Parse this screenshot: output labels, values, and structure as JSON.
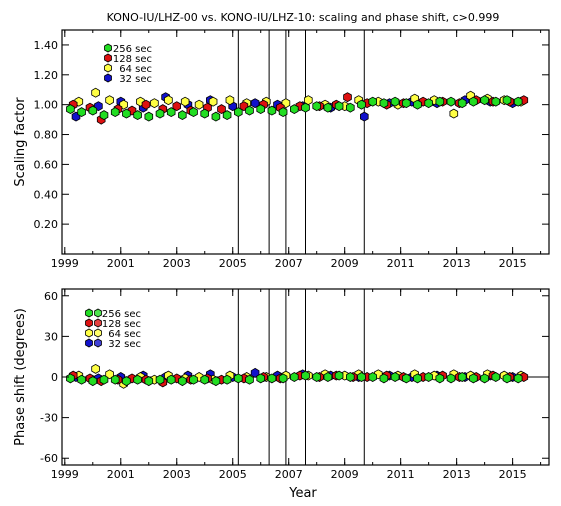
{
  "title": "KONO-IU/LHZ-00 vs. KONO-IU/LHZ-10: scaling and phase shift, c>0.999",
  "xlabel": "Year",
  "colors": {
    "256 sec": "#22dd22",
    "128 sec": "#dd1111",
    "64 sec": "#ffff44",
    "32 sec": "#1111cc"
  },
  "event_lines": [
    2005.2,
    2006.3,
    2006.9,
    2007.6,
    2009.7
  ],
  "chart_data": [
    {
      "type": "scatter",
      "ylabel": "Scaling factor",
      "xlim": [
        1998.9,
        2016.3
      ],
      "ylim": [
        0.0,
        1.5
      ],
      "x_ticks": [
        "1999",
        "2001",
        "2003",
        "2005",
        "2007",
        "2009",
        "2011",
        "2013",
        "2015"
      ],
      "y_ticks": [
        "0.20",
        "0.40",
        "0.60",
        "0.80",
        "1.00",
        "1.20",
        "1.40"
      ],
      "legend": [
        "256 sec",
        "128 sec",
        "64 sec",
        "32 sec"
      ],
      "legend_style": "single",
      "grid": false,
      "series": [
        {
          "name": "256 sec",
          "x": [
            1999.2,
            1999.6,
            2000.0,
            2000.4,
            2000.8,
            2001.2,
            2001.6,
            2002.0,
            2002.4,
            2002.8,
            2003.2,
            2003.6,
            2004.0,
            2004.4,
            2004.8,
            2005.2,
            2005.6,
            2006.0,
            2006.4,
            2006.8,
            2007.2,
            2007.6,
            2008.0,
            2008.4,
            2008.8,
            2009.2,
            2009.6,
            2010.0,
            2010.4,
            2010.8,
            2011.2,
            2011.6,
            2012.0,
            2012.4,
            2012.8,
            2013.2,
            2013.6,
            2014.0,
            2014.4,
            2014.8,
            2015.2
          ],
          "y": [
            0.97,
            0.95,
            0.96,
            0.93,
            0.95,
            0.94,
            0.93,
            0.92,
            0.94,
            0.95,
            0.93,
            0.95,
            0.94,
            0.92,
            0.93,
            0.95,
            0.96,
            0.97,
            0.96,
            0.95,
            0.97,
            0.98,
            0.99,
            0.98,
            0.99,
            0.98,
            1.0,
            1.02,
            1.01,
            1.02,
            1.01,
            1.0,
            1.01,
            1.02,
            1.02,
            1.01,
            1.02,
            1.03,
            1.02,
            1.03,
            1.02
          ]
        },
        {
          "name": "128 sec",
          "x": [
            1999.3,
            1999.9,
            2000.3,
            2000.9,
            2001.4,
            2001.9,
            2002.5,
            2003.0,
            2003.5,
            2004.1,
            2004.6,
            2005.4,
            2006.1,
            2006.7,
            2007.4,
            2008.1,
            2008.7,
            2009.1,
            2009.8,
            2010.5,
            2011.1,
            2011.8,
            2012.5,
            2013.1,
            2013.7,
            2014.3,
            2014.9,
            2015.4
          ],
          "y": [
            1.0,
            0.98,
            0.9,
            0.97,
            0.96,
            1.0,
            0.97,
            0.99,
            0.96,
            0.98,
            0.97,
            0.99,
            1.0,
            0.98,
            0.99,
            0.99,
            1.0,
            1.05,
            1.01,
            1.0,
            1.01,
            1.02,
            1.02,
            1.01,
            1.03,
            1.02,
            1.02,
            1.03
          ]
        },
        {
          "name": "64 sec",
          "x": [
            1999.5,
            2000.1,
            2000.6,
            2001.1,
            2001.7,
            2002.2,
            2002.7,
            2003.3,
            2003.8,
            2004.3,
            2004.9,
            2005.5,
            2006.2,
            2006.9,
            2007.7,
            2008.3,
            2009.0,
            2009.5,
            2010.2,
            2010.9,
            2011.5,
            2012.2,
            2012.9,
            2013.5,
            2014.1,
            2014.7,
            2015.3
          ],
          "y": [
            1.02,
            1.08,
            1.03,
            1.0,
            1.02,
            1.01,
            1.03,
            1.02,
            1.0,
            1.02,
            1.03,
            1.01,
            1.02,
            1.01,
            1.03,
            1.0,
            0.99,
            1.03,
            1.02,
            1.0,
            1.04,
            1.03,
            0.94,
            1.06,
            1.04,
            1.03,
            1.02
          ]
        },
        {
          "name": "32 sec",
          "x": [
            1999.4,
            2000.2,
            2001.0,
            2001.8,
            2002.6,
            2003.4,
            2004.2,
            2005.0,
            2005.8,
            2006.6,
            2007.5,
            2008.5,
            2009.7,
            2010.6,
            2011.4,
            2012.3,
            2013.3,
            2014.2,
            2015.0
          ],
          "y": [
            0.92,
            0.99,
            1.02,
            0.98,
            1.05,
            1.0,
            1.03,
            0.99,
            1.01,
            1.0,
            0.99,
            0.98,
            0.92,
            1.01,
            1.02,
            1.01,
            1.03,
            1.02,
            1.01
          ]
        }
      ]
    },
    {
      "type": "scatter",
      "ylabel": "Phase shift (degrees)",
      "xlim": [
        1998.9,
        2016.3
      ],
      "ylim": [
        -65,
        65
      ],
      "x_ticks": [
        "1999",
        "2001",
        "2003",
        "2005",
        "2007",
        "2009",
        "2011",
        "2013",
        "2015"
      ],
      "y_ticks": [
        "-60",
        "-30",
        "0",
        "30",
        "60"
      ],
      "legend": [
        "256 sec",
        "128 sec",
        "64 sec",
        "32 sec"
      ],
      "legend_style": "double",
      "grid": false,
      "series": [
        {
          "name": "256 sec",
          "x": [
            1999.2,
            1999.6,
            2000.0,
            2000.4,
            2000.8,
            2001.2,
            2001.6,
            2002.0,
            2002.4,
            2002.8,
            2003.2,
            2003.6,
            2004.0,
            2004.4,
            2004.8,
            2005.2,
            2005.6,
            2006.0,
            2006.4,
            2006.8,
            2007.2,
            2007.6,
            2008.0,
            2008.4,
            2008.8,
            2009.2,
            2009.6,
            2010.0,
            2010.4,
            2010.8,
            2011.2,
            2011.6,
            2012.0,
            2012.4,
            2012.8,
            2013.2,
            2013.6,
            2014.0,
            2014.4,
            2014.8,
            2015.2
          ],
          "y": [
            -1,
            -2,
            -3,
            -2,
            -2,
            -3,
            -2,
            -3,
            -2,
            -2,
            -3,
            -2,
            -2,
            -3,
            -2,
            -1,
            -2,
            -1,
            -1,
            -1,
            0,
            1,
            0,
            0,
            1,
            0,
            0,
            0,
            -1,
            0,
            -1,
            -1,
            0,
            -1,
            -1,
            0,
            -1,
            -1,
            0,
            -1,
            -1
          ]
        },
        {
          "name": "128 sec",
          "x": [
            1999.3,
            1999.9,
            2000.3,
            2000.9,
            2001.4,
            2001.9,
            2002.5,
            2003.0,
            2003.5,
            2004.1,
            2004.6,
            2005.4,
            2006.1,
            2006.7,
            2007.4,
            2008.1,
            2008.7,
            2009.3,
            2009.8,
            2010.5,
            2011.1,
            2011.8,
            2012.5,
            2013.1,
            2013.7,
            2014.3,
            2014.9,
            2015.4
          ],
          "y": [
            1,
            -1,
            -3,
            -2,
            -1,
            -2,
            -4,
            -1,
            -2,
            -1,
            -2,
            -1,
            0,
            -1,
            1,
            0,
            1,
            0,
            0,
            1,
            0,
            0,
            1,
            0,
            0,
            1,
            0,
            0
          ]
        },
        {
          "name": "64 sec",
          "x": [
            1999.5,
            2000.1,
            2000.6,
            2001.1,
            2001.7,
            2002.2,
            2002.7,
            2003.3,
            2003.8,
            2004.3,
            2004.9,
            2005.5,
            2006.2,
            2006.9,
            2007.7,
            2008.3,
            2009.0,
            2009.5,
            2010.2,
            2010.9,
            2011.5,
            2012.2,
            2012.9,
            2013.5,
            2014.1,
            2014.7,
            2015.3
          ],
          "y": [
            1,
            6,
            2,
            -5,
            0,
            -2,
            1,
            -1,
            0,
            -2,
            1,
            0,
            0,
            1,
            1,
            2,
            1,
            2,
            2,
            1,
            2,
            1,
            2,
            1,
            2,
            1,
            1
          ]
        },
        {
          "name": "32 sec",
          "x": [
            1999.4,
            2000.2,
            2001.0,
            2001.8,
            2002.6,
            2003.4,
            2004.2,
            2005.0,
            2005.8,
            2006.6,
            2007.5,
            2008.5,
            2009.5,
            2010.6,
            2011.4,
            2012.3,
            2013.3,
            2014.2,
            2015.0
          ],
          "y": [
            0,
            -1,
            0,
            1,
            0,
            1,
            2,
            0,
            3,
            1,
            2,
            1,
            0,
            1,
            0,
            1,
            0,
            1,
            0
          ]
        }
      ]
    }
  ]
}
